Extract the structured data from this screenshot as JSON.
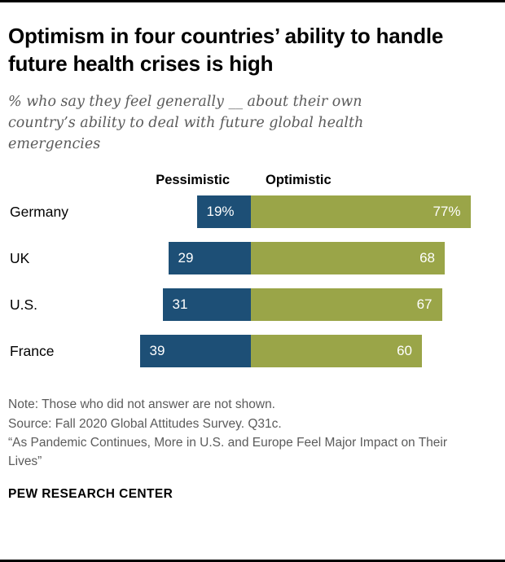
{
  "title": "Optimism in four countries’ ability to handle future health crises is high",
  "subtitle": "% who say they feel generally __ about their own country’s ability to deal with future global health emergencies",
  "chart_data": {
    "type": "bar",
    "subtype": "diverging-horizontal",
    "categories": [
      "Germany",
      "UK",
      "U.S.",
      "France"
    ],
    "series": [
      {
        "name": "Pessimistic",
        "values": [
          19,
          29,
          31,
          39
        ]
      },
      {
        "name": "Optimistic",
        "values": [
          77,
          68,
          67,
          60
        ]
      }
    ],
    "labels": {
      "pessimistic": [
        "19%",
        "29",
        "31",
        "39"
      ],
      "optimistic": [
        "77%",
        "68",
        "67",
        "60"
      ]
    },
    "legend": {
      "pessimistic": "Pessimistic",
      "optimistic": "Optimistic"
    },
    "xlim": [
      0,
      100
    ],
    "grid": false,
    "value_labels_shown": true
  },
  "colors": {
    "pessimistic": "#1d4f76",
    "optimistic": "#9aa548"
  },
  "notes": {
    "line1": "Note: Those who did not answer are not shown.",
    "line2": "Source: Fall 2020 Global Attitudes Survey. Q31c.",
    "line3": "“As Pandemic Continues, More in U.S. and Europe Feel Major Impact on Their Lives”"
  },
  "footer": {
    "brand": "PEW RESEARCH CENTER"
  }
}
